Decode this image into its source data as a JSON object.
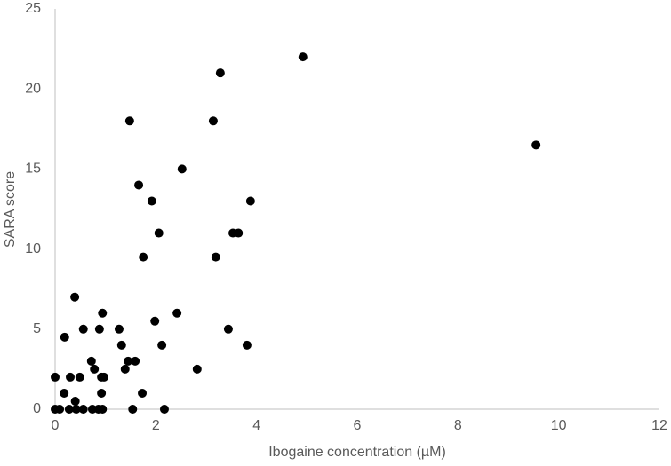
{
  "chart_data": {
    "type": "scatter",
    "x_label": "Ibogaine concentration (µM)",
    "y_label": "SARA score",
    "x": [
      0,
      0,
      0.09,
      0.18,
      0.19,
      0.28,
      0.3,
      0.39,
      0.4,
      0.42,
      0.49,
      0.56,
      0.56,
      0.72,
      0.74,
      0.78,
      0.86,
      0.88,
      0.92,
      0.92,
      0.94,
      0.94,
      0.97,
      1.27,
      1.32,
      1.39,
      1.45,
      1.48,
      1.54,
      1.59,
      1.66,
      1.73,
      1.75,
      1.92,
      1.98,
      2.06,
      2.12,
      2.17,
      2.42,
      2.52,
      2.82,
      3.14,
      3.19,
      3.28,
      3.44,
      3.53,
      3.64,
      3.81,
      3.88,
      4.92,
      9.55
    ],
    "values": [
      2,
      0,
      0,
      1,
      4.5,
      0,
      2,
      7,
      0.5,
      0,
      2,
      5,
      0,
      3,
      0,
      2.5,
      0,
      5,
      2,
      1,
      6,
      0,
      2,
      5,
      4,
      2.5,
      3,
      18,
      0,
      3,
      14,
      1,
      9.5,
      13,
      5.5,
      11,
      4,
      0,
      6,
      15,
      2.5,
      18,
      9.5,
      21,
      5,
      11,
      11,
      4,
      13,
      22,
      16.5
    ],
    "color": "#000000",
    "xlim": [
      0,
      12
    ],
    "xticks": [
      0,
      2,
      4,
      6,
      8,
      10,
      12
    ],
    "ylim": [
      0,
      25
    ],
    "yticks": [
      0,
      5,
      10,
      15,
      20,
      25
    ]
  }
}
